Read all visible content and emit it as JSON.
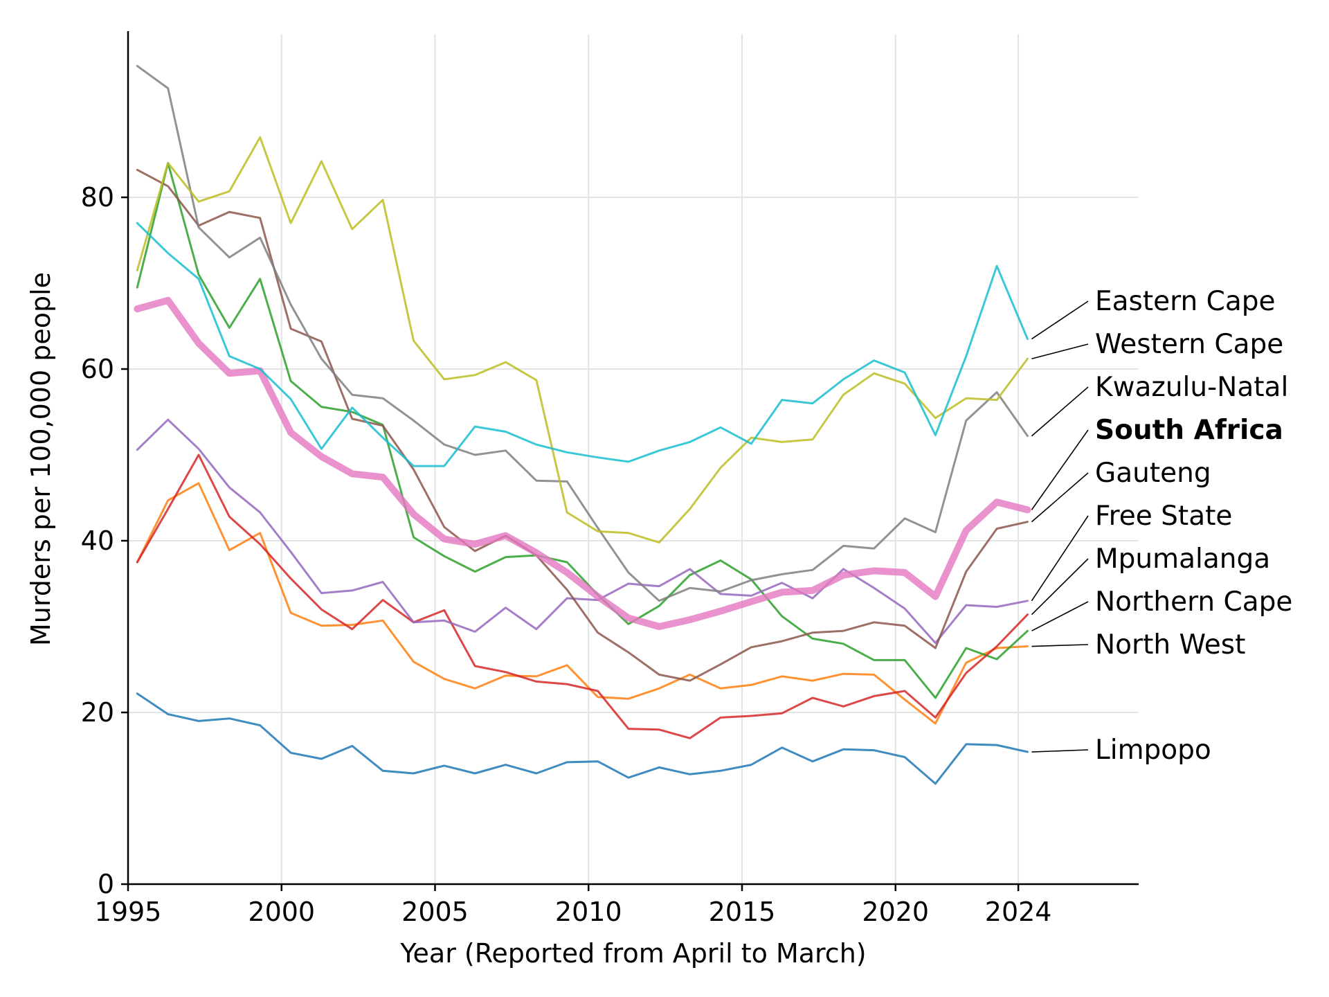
{
  "chart_data": {
    "type": "line",
    "xlabel": "Year (Reported from April to March)",
    "ylabel": "Murders per 100,000 people",
    "xlim": [
      1995,
      2028
    ],
    "ylim": [
      0,
      99
    ],
    "xticks": [
      1995,
      2000,
      2005,
      2010,
      2015,
      2020,
      2024
    ],
    "yticks": [
      0,
      20,
      40,
      60,
      80
    ],
    "grid": true,
    "legend": "direct-labels-right",
    "x": [
      1995.3,
      1996.3,
      1997.3,
      1998.3,
      1999.3,
      2000.3,
      2001.3,
      2002.3,
      2003.3,
      2004.3,
      2005.3,
      2006.3,
      2007.3,
      2008.3,
      2009.3,
      2010.3,
      2011.3,
      2012.3,
      2013.3,
      2014.3,
      2015.3,
      2016.3,
      2017.3,
      2018.3,
      2019.3,
      2020.3,
      2021.3,
      2022.3,
      2023.3,
      2024.3
    ],
    "series": [
      {
        "name": "Eastern Cape",
        "color": "#17becf",
        "width": 3,
        "values": [
          77,
          73.5,
          70.5,
          61.5,
          60,
          56.5,
          50.7,
          55.5,
          52,
          48.7,
          48.7,
          53.3,
          52.7,
          51.2,
          50.3,
          49.7,
          49.2,
          50.5,
          51.5,
          53.2,
          51.3,
          56.4,
          56,
          58.8,
          61,
          59.6,
          52.3,
          61.5,
          72,
          63.5
        ]
      },
      {
        "name": "Western Cape",
        "color": "#bcbd22",
        "width": 3,
        "values": [
          71.5,
          84,
          79.5,
          80.7,
          87,
          77,
          84.2,
          76.3,
          79.7,
          63.3,
          58.8,
          59.3,
          60.8,
          58.7,
          43.3,
          41.1,
          40.9,
          39.8,
          43.7,
          48.5,
          52,
          51.5,
          51.8,
          57,
          59.5,
          58.3,
          54.3,
          56.6,
          56.4,
          61.2
        ]
      },
      {
        "name": "Kwazulu-Natal",
        "color": "#7f7f7f",
        "width": 3,
        "values": [
          95.3,
          92.7,
          76.5,
          73,
          75.3,
          67.5,
          61.2,
          57,
          56.6,
          54,
          51.2,
          50,
          50.5,
          47,
          46.9,
          41.5,
          36.3,
          33,
          34.5,
          34.1,
          35.4,
          36.1,
          36.6,
          39.4,
          39.1,
          42.6,
          41,
          54,
          57.3,
          52.2
        ]
      },
      {
        "name": "South Africa",
        "color": "#e377c2",
        "width": 10,
        "bold": true,
        "values": [
          67,
          68,
          63,
          59.5,
          59.8,
          52.6,
          49.8,
          47.8,
          47.4,
          43.1,
          40.2,
          39.6,
          40.6,
          38.6,
          36.3,
          33.5,
          31,
          30,
          30.8,
          31.8,
          32.9,
          34,
          34.2,
          36,
          36.5,
          36.3,
          33.5,
          41.2,
          44.5,
          43.6
        ]
      },
      {
        "name": "Gauteng",
        "color": "#8c564b",
        "width": 3,
        "values": [
          83.2,
          81.3,
          76.7,
          78.3,
          77.6,
          64.7,
          63.2,
          54.2,
          53.4,
          48.3,
          41.6,
          38.8,
          40.6,
          38.3,
          34.3,
          29.3,
          27,
          24.4,
          23.7,
          25.6,
          27.6,
          28.3,
          29.3,
          29.5,
          30.5,
          30.1,
          27.5,
          36.4,
          41.4,
          42.2
        ]
      },
      {
        "name": "Free State",
        "color": "#9467bd",
        "width": 3,
        "values": [
          50.6,
          54.1,
          50.7,
          46.2,
          43.3,
          38.7,
          33.9,
          34.2,
          35.2,
          30.5,
          30.7,
          29.4,
          32.2,
          29.7,
          33.3,
          33.1,
          35,
          34.7,
          36.7,
          33.8,
          33.6,
          35.1,
          33.3,
          36.7,
          34.5,
          32.1,
          28.1,
          32.5,
          32.3,
          33
        ]
      },
      {
        "name": "Mpumalanga",
        "color": "#d62728",
        "width": 3,
        "values": [
          37.5,
          43.7,
          50,
          42.8,
          39.6,
          35.6,
          32,
          29.7,
          33.1,
          30.5,
          31.9,
          25.4,
          24.7,
          23.6,
          23.3,
          22.5,
          18.1,
          18,
          17,
          19.4,
          19.6,
          19.9,
          21.7,
          20.7,
          21.9,
          22.5,
          19.4,
          24.6,
          27.7,
          31.4
        ]
      },
      {
        "name": "Northern Cape",
        "color": "#2ca02c",
        "width": 3,
        "values": [
          69.5,
          84,
          71,
          64.8,
          70.5,
          58.6,
          55.6,
          55,
          53.5,
          40.4,
          38.2,
          36.4,
          38.1,
          38.3,
          37.5,
          33.7,
          30.3,
          32.4,
          36,
          37.7,
          35.5,
          31.2,
          28.6,
          28,
          26.1,
          26.1,
          21.7,
          27.5,
          26.2,
          29.5
        ]
      },
      {
        "name": "North West",
        "color": "#ff7f0e",
        "width": 3,
        "values": [
          37.5,
          44.7,
          46.7,
          38.9,
          40.9,
          31.6,
          30.1,
          30.2,
          30.7,
          25.9,
          23.9,
          22.8,
          24.3,
          24.2,
          25.5,
          21.8,
          21.6,
          22.8,
          24.4,
          22.8,
          23.2,
          24.2,
          23.7,
          24.5,
          24.4,
          21.5,
          18.7,
          25.8,
          27.5,
          27.7
        ]
      },
      {
        "name": "Limpopo",
        "color": "#1f77b4",
        "width": 3,
        "values": [
          22.2,
          19.8,
          19,
          19.3,
          18.5,
          15.3,
          14.6,
          16.1,
          13.2,
          12.9,
          13.8,
          12.9,
          13.9,
          12.9,
          14.2,
          14.3,
          12.4,
          13.6,
          12.8,
          13.2,
          13.9,
          15.9,
          14.3,
          15.7,
          15.6,
          14.8,
          11.7,
          16.3,
          16.2,
          15.4
        ]
      }
    ]
  }
}
